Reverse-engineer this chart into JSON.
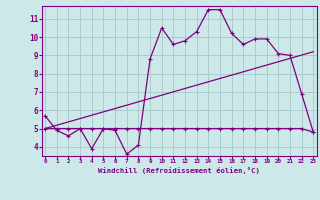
{
  "xlabel": "Windchill (Refroidissement éolien,°C)",
  "x": [
    0,
    1,
    2,
    3,
    4,
    5,
    6,
    7,
    8,
    9,
    10,
    11,
    12,
    13,
    14,
    15,
    16,
    17,
    18,
    19,
    20,
    21,
    22,
    23
  ],
  "line1": [
    5.7,
    4.9,
    4.6,
    5.0,
    3.9,
    5.0,
    4.9,
    3.6,
    4.1,
    8.8,
    10.5,
    9.6,
    9.8,
    10.3,
    11.5,
    11.5,
    10.2,
    9.6,
    9.9,
    9.9,
    9.1,
    9.0,
    6.9,
    4.8
  ],
  "line2": [
    5.0,
    5.0,
    5.0,
    5.0,
    5.0,
    5.0,
    5.0,
    5.0,
    5.0,
    5.0,
    5.0,
    5.0,
    5.0,
    5.0,
    5.0,
    5.0,
    5.0,
    5.0,
    5.0,
    5.0,
    5.0,
    5.0,
    5.0,
    4.8
  ],
  "line3_x": [
    0,
    23
  ],
  "line3_y": [
    5.0,
    9.2
  ],
  "line_color": "#800080",
  "bg_color": "#cce8e8",
  "grid_color": "#aacccc",
  "ylim": [
    3.5,
    11.7
  ],
  "yticks": [
    4,
    5,
    6,
    7,
    8,
    9,
    10,
    11
  ],
  "xticks": [
    0,
    1,
    2,
    3,
    4,
    5,
    6,
    7,
    8,
    9,
    10,
    11,
    12,
    13,
    14,
    15,
    16,
    17,
    18,
    19,
    20,
    21,
    22,
    23
  ],
  "xlim": [
    -0.3,
    23.3
  ]
}
